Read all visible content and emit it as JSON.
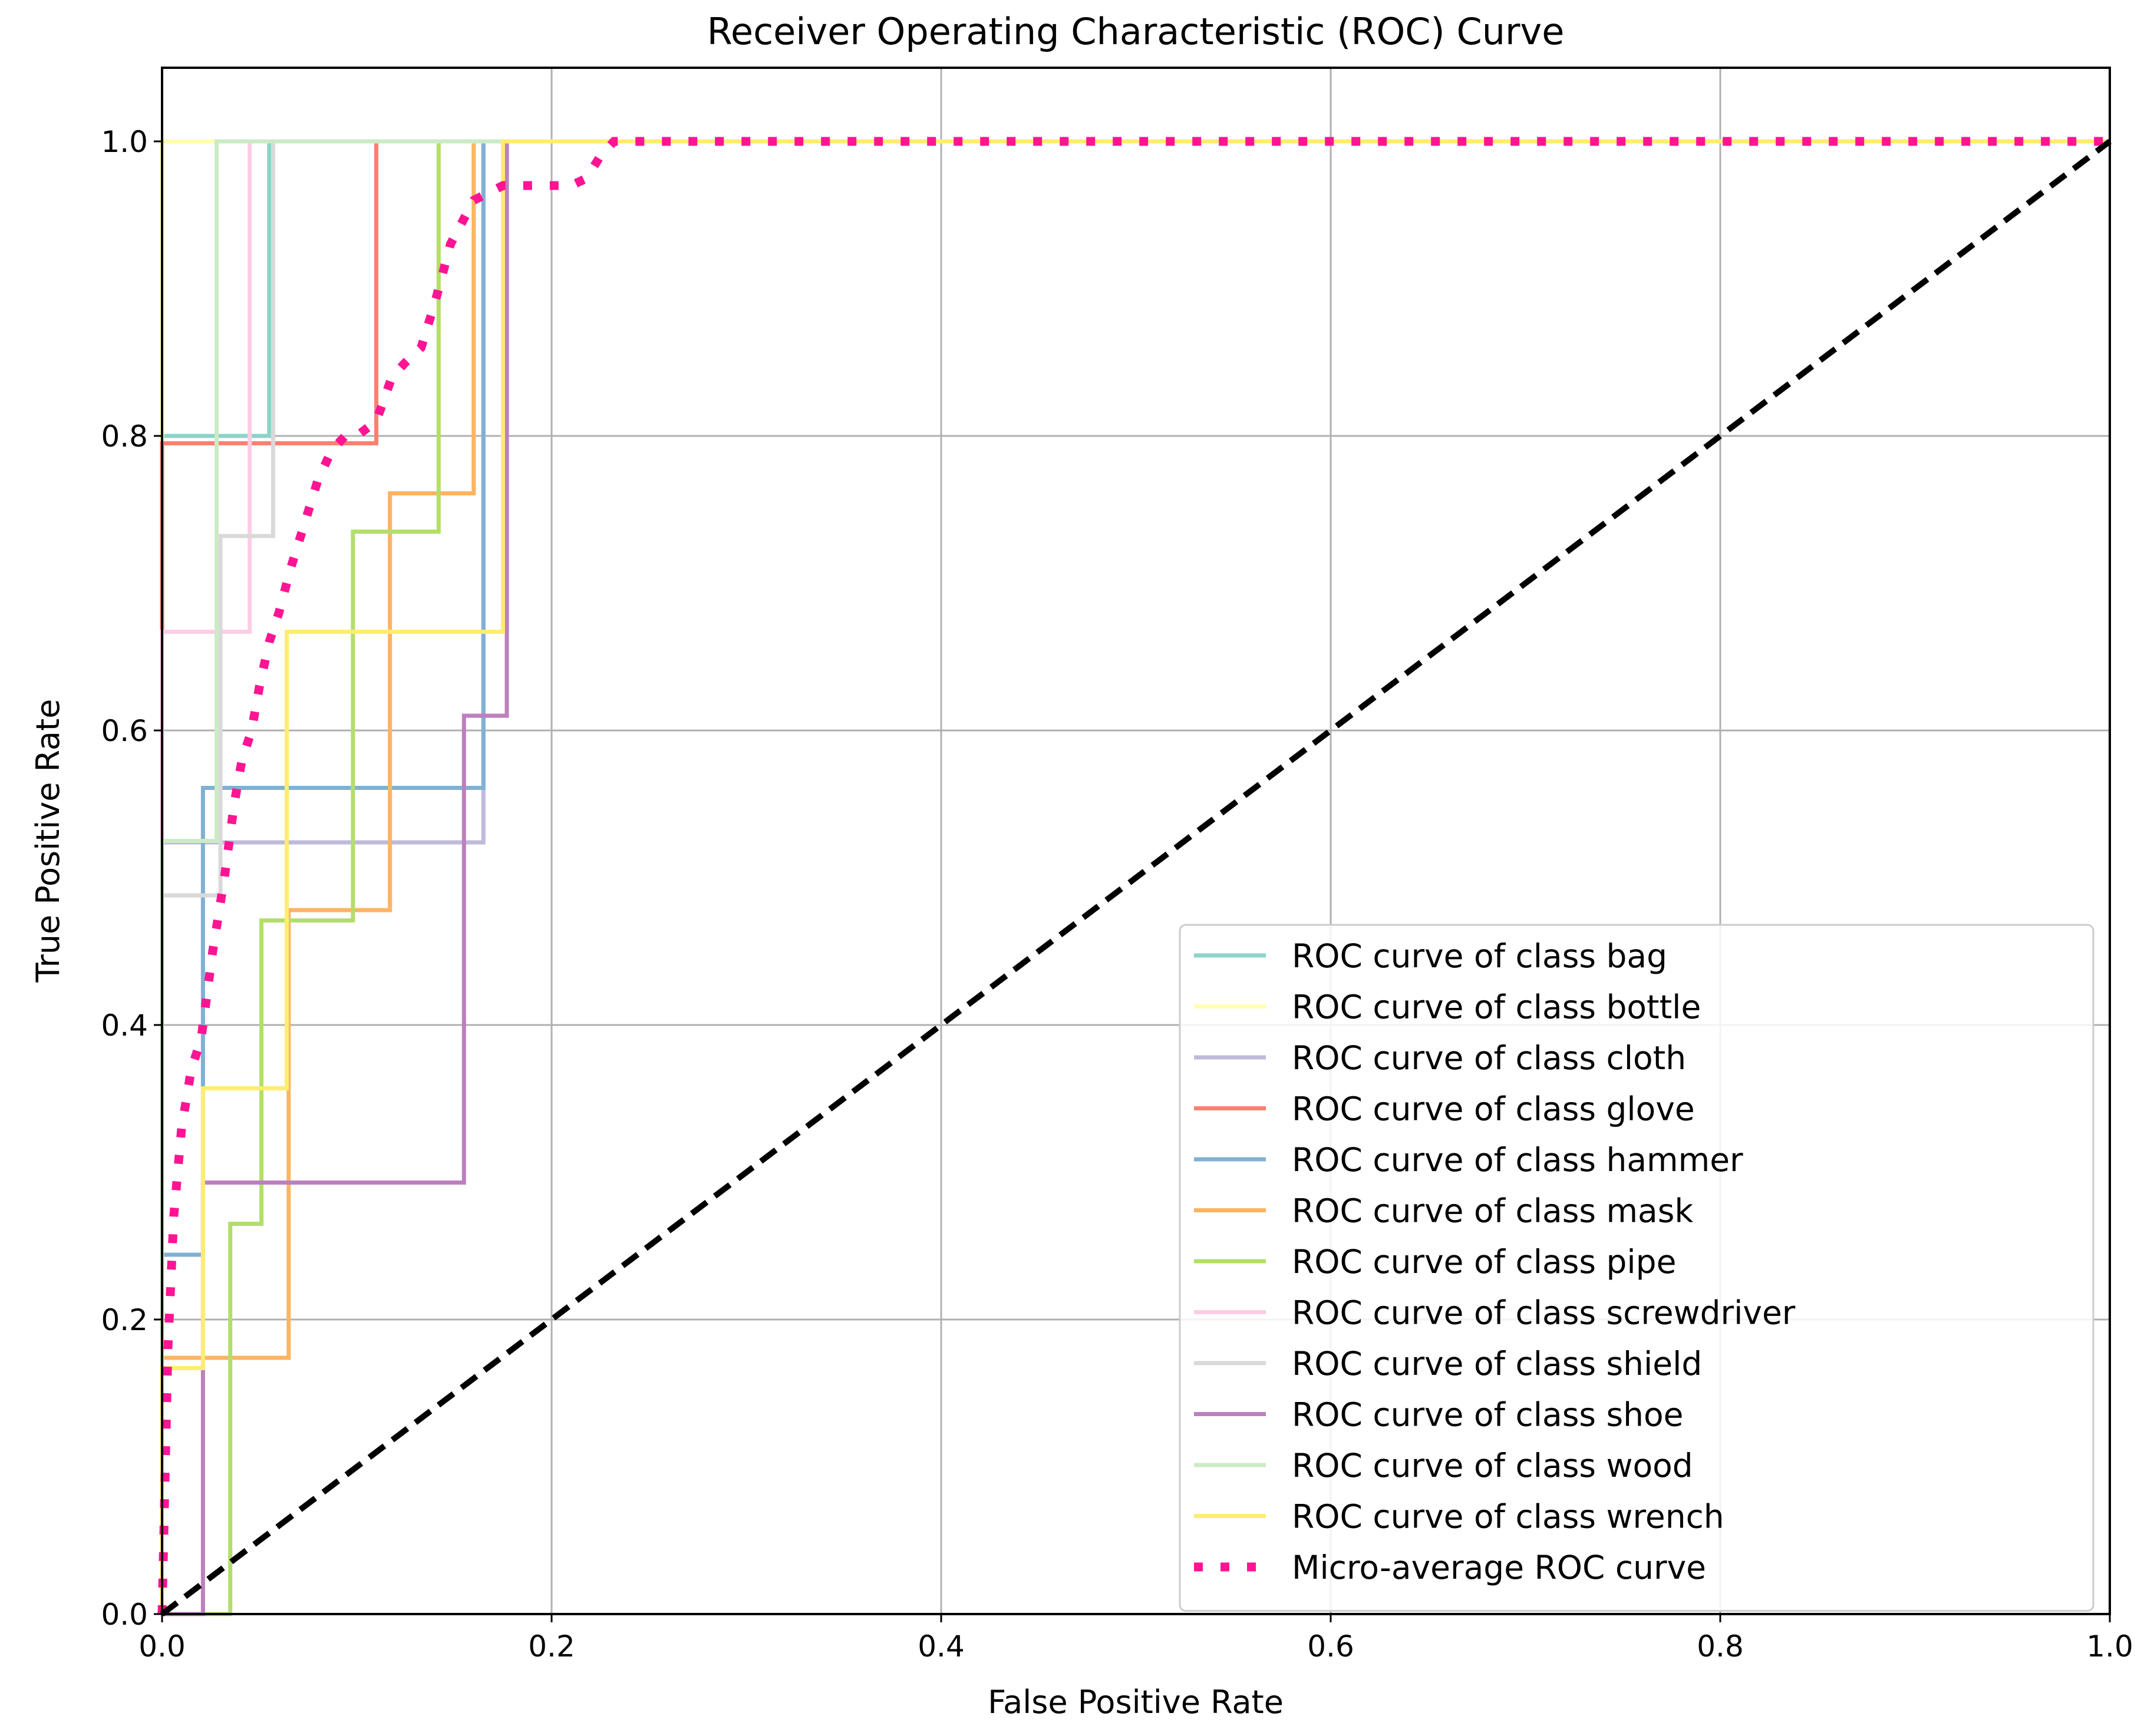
{
  "chart_data": {
    "type": "line",
    "title": "Receiver Operating Characteristic (ROC) Curve",
    "xlabel": "False Positive Rate",
    "ylabel": "True Positive Rate",
    "xlim": [
      0.0,
      1.0
    ],
    "ylim": [
      0.0,
      1.05
    ],
    "xticks": [
      "0.0",
      "0.2",
      "0.4",
      "0.6",
      "0.8",
      "1.0"
    ],
    "yticks": [
      "0.0",
      "0.2",
      "0.4",
      "0.6",
      "0.8",
      "1.0"
    ],
    "grid": true,
    "legend_position": "lower-right",
    "series": [
      {
        "name": "ROC curve of class bag",
        "color": "#8dd3c7",
        "style": "solid",
        "x": [
          0,
          0,
          0.055,
          0.055,
          1
        ],
        "y": [
          0,
          0.8,
          0.8,
          1,
          1
        ]
      },
      {
        "name": "ROC curve of class bottle",
        "color": "#ffffb3",
        "style": "solid",
        "x": [
          0,
          0,
          1
        ],
        "y": [
          0,
          1,
          1
        ]
      },
      {
        "name": "ROC curve of class cloth",
        "color": "#bebada",
        "style": "solid",
        "x": [
          0,
          0,
          0.165,
          0.165,
          1
        ],
        "y": [
          0,
          0.524,
          0.524,
          1,
          1
        ]
      },
      {
        "name": "ROC curve of class glove",
        "color": "#fb8072",
        "style": "solid",
        "x": [
          0,
          0,
          0.11,
          0.11,
          1
        ],
        "y": [
          0,
          0.795,
          0.795,
          1,
          1
        ]
      },
      {
        "name": "ROC curve of class hammer",
        "color": "#80b1d3",
        "style": "solid",
        "x": [
          0,
          0,
          0.021,
          0.021,
          0.165,
          0.165,
          1
        ],
        "y": [
          0,
          0.244,
          0.244,
          0.561,
          0.561,
          1,
          1
        ]
      },
      {
        "name": "ROC curve of class mask",
        "color": "#fdb462",
        "style": "solid",
        "x": [
          0,
          0,
          0.065,
          0.065,
          0.117,
          0.117,
          0.16,
          0.16,
          1
        ],
        "y": [
          0,
          0.174,
          0.174,
          0.478,
          0.478,
          0.761,
          0.761,
          1,
          1
        ]
      },
      {
        "name": "ROC curve of class pipe",
        "color": "#b3de69",
        "style": "solid",
        "x": [
          0,
          0.035,
          0.035,
          0.051,
          0.051,
          0.098,
          0.098,
          0.142,
          0.142,
          1
        ],
        "y": [
          0,
          0,
          0.265,
          0.265,
          0.471,
          0.471,
          0.735,
          0.735,
          1,
          1
        ]
      },
      {
        "name": "ROC curve of class screwdriver",
        "color": "#fccde5",
        "style": "solid",
        "x": [
          0,
          0,
          0.045,
          0.045,
          1
        ],
        "y": [
          0,
          0.667,
          0.667,
          1,
          1
        ]
      },
      {
        "name": "ROC curve of class shield",
        "color": "#d9d9d9",
        "style": "solid",
        "x": [
          0,
          0,
          0.03,
          0.03,
          0.057,
          0.057,
          1
        ],
        "y": [
          0,
          0.488,
          0.488,
          0.732,
          0.732,
          1,
          1
        ]
      },
      {
        "name": "ROC curve of class shoe",
        "color": "#bc80bd",
        "style": "solid",
        "x": [
          0,
          0.021,
          0.021,
          0.155,
          0.155,
          0.177,
          0.177,
          1
        ],
        "y": [
          0,
          0,
          0.293,
          0.293,
          0.61,
          0.61,
          1,
          1
        ]
      },
      {
        "name": "ROC curve of class wood",
        "color": "#ccebc5",
        "style": "solid",
        "x": [
          0,
          0,
          0.028,
          0.028,
          1
        ],
        "y": [
          0,
          0.525,
          0.525,
          1,
          1
        ]
      },
      {
        "name": "ROC curve of class wrench",
        "color": "#ffed6f",
        "style": "solid",
        "x": [
          0,
          0,
          0.021,
          0.021,
          0.064,
          0.064,
          0.175,
          0.175,
          1
        ],
        "y": [
          0,
          0.167,
          0.167,
          0.357,
          0.357,
          0.667,
          0.667,
          1,
          1
        ]
      },
      {
        "name": "Micro-average ROC curve",
        "color": "#ff1493",
        "style": "dotted",
        "x": [
          0,
          0.003,
          0.006,
          0.01,
          0.015,
          0.02,
          0.026,
          0.032,
          0.037,
          0.041,
          0.046,
          0.05,
          0.055,
          0.06,
          0.066,
          0.073,
          0.08,
          0.087,
          0.094,
          0.1,
          0.11,
          0.118,
          0.125,
          0.133,
          0.14,
          0.148,
          0.16,
          0.175,
          0.19,
          0.21,
          0.218,
          0.225,
          0.232,
          1
        ],
        "y": [
          0,
          0.18,
          0.27,
          0.33,
          0.37,
          0.39,
          0.45,
          0.5,
          0.55,
          0.58,
          0.6,
          0.63,
          0.66,
          0.68,
          0.71,
          0.74,
          0.77,
          0.79,
          0.8,
          0.8,
          0.81,
          0.84,
          0.85,
          0.86,
          0.89,
          0.93,
          0.96,
          0.97,
          0.97,
          0.97,
          0.975,
          0.99,
          1,
          1
        ]
      },
      {
        "name": "",
        "color": "#000000",
        "style": "dashed",
        "x": [
          0,
          1
        ],
        "y": [
          0,
          1
        ]
      }
    ]
  }
}
